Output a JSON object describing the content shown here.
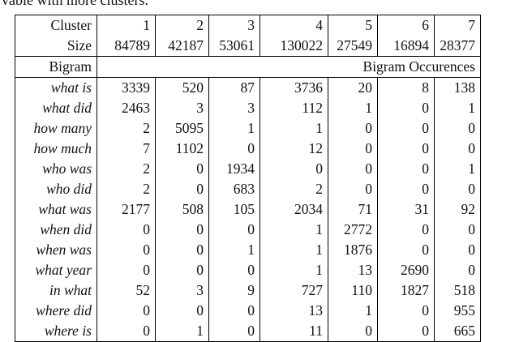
{
  "caption_fragment": "vable with more clusters.",
  "table": {
    "cluster_label": "Cluster",
    "size_label": "Size",
    "clusters": [
      "1",
      "2",
      "3",
      "4",
      "5",
      "6",
      "7"
    ],
    "sizes": [
      "84789",
      "42187",
      "53061",
      "130022",
      "27549",
      "16894",
      "28377"
    ],
    "bigram_header": "Bigram",
    "occurrences_header": "Bigram Occurences",
    "rows": [
      {
        "bigram": "what is",
        "values": [
          "3339",
          "520",
          "87",
          "3736",
          "20",
          "8",
          "138"
        ]
      },
      {
        "bigram": "what did",
        "values": [
          "2463",
          "3",
          "3",
          "112",
          "1",
          "0",
          "1"
        ]
      },
      {
        "bigram": "how many",
        "values": [
          "2",
          "5095",
          "1",
          "1",
          "0",
          "0",
          "0"
        ]
      },
      {
        "bigram": "how much",
        "values": [
          "7",
          "1102",
          "0",
          "12",
          "0",
          "0",
          "0"
        ]
      },
      {
        "bigram": "who was",
        "values": [
          "2",
          "0",
          "1934",
          "0",
          "0",
          "0",
          "1"
        ]
      },
      {
        "bigram": "who did",
        "values": [
          "2",
          "0",
          "683",
          "2",
          "0",
          "0",
          "0"
        ]
      },
      {
        "bigram": "what was",
        "values": [
          "2177",
          "508",
          "105",
          "2034",
          "71",
          "31",
          "92"
        ]
      },
      {
        "bigram": "when did",
        "values": [
          "0",
          "0",
          "0",
          "1",
          "2772",
          "0",
          "0"
        ]
      },
      {
        "bigram": "when was",
        "values": [
          "0",
          "0",
          "1",
          "1",
          "1876",
          "0",
          "0"
        ]
      },
      {
        "bigram": "what year",
        "values": [
          "0",
          "0",
          "0",
          "1",
          "13",
          "2690",
          "0"
        ]
      },
      {
        "bigram": "in what",
        "values": [
          "52",
          "3",
          "9",
          "727",
          "110",
          "1827",
          "518"
        ]
      },
      {
        "bigram": "where did",
        "values": [
          "0",
          "0",
          "0",
          "13",
          "1",
          "0",
          "955"
        ]
      },
      {
        "bigram": "where is",
        "values": [
          "0",
          "1",
          "0",
          "11",
          "0",
          "0",
          "665"
        ]
      }
    ]
  }
}
